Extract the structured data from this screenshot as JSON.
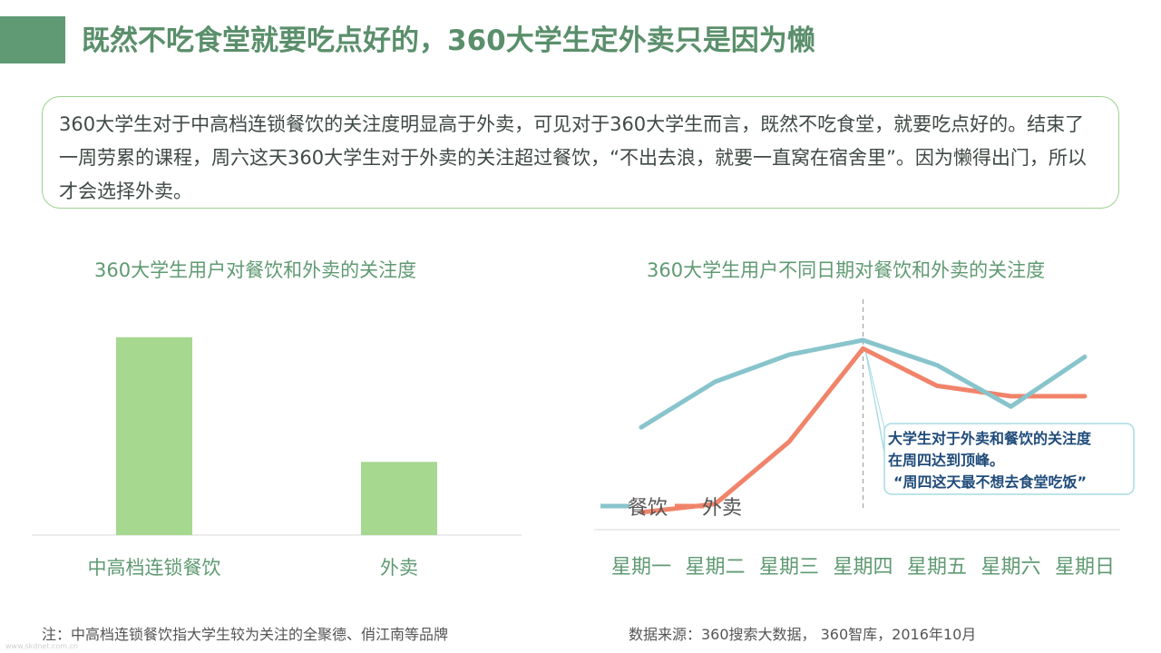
{
  "title": "既然不吃食堂就要吃点好的，360大学生定外卖只是因为懒",
  "summary": "360大学生对于中高档连锁餐饮的关注度明显高于外卖，可见对于360大学生而言，既然不吃食堂，就要吃点好的。结束了一周劳累的课程，周六这天360大学生对于外卖的关注超过餐饮，“不出去浪，就要一直窝在宿舍里”。因为懒得出门，所以才会选择外卖。",
  "colors": {
    "accent": "#5f9a75",
    "bar": "#a6d88f",
    "catering_line": "#88c4cc",
    "takeout_line": "#f0846a",
    "callout_border": "#a7dbe2"
  },
  "chart_data": [
    {
      "type": "bar",
      "title": "360大学生用户对餐饮和外卖的关注度",
      "categories": [
        "中高档连锁餐饮",
        "外卖"
      ],
      "values": [
        100,
        37
      ],
      "ylim": [
        0,
        110
      ],
      "grid": false,
      "legend": "none"
    },
    {
      "type": "line",
      "title": "360大学生用户不同日期对餐饮和外卖的关注度",
      "categories": [
        "星期一",
        "星期二",
        "星期三",
        "星期四",
        "星期五",
        "星期六",
        "星期日"
      ],
      "series": [
        {
          "name": "餐饮",
          "values": [
            52,
            74,
            87,
            94,
            82,
            62,
            86
          ],
          "color": "#88c4cc"
        },
        {
          "name": "外卖",
          "values": [
            11,
            15,
            45,
            90,
            72,
            67,
            67
          ],
          "color": "#f0846a"
        }
      ],
      "ylim": [
        0,
        105
      ],
      "grid": false,
      "legend": "bottom-left",
      "highlight": "星期四",
      "annotation": {
        "lines": [
          "大学生对于外卖和餐饮的关注度",
          "在周四达到顶峰。",
          "“周四这天最不想去食堂吃饭”"
        ]
      }
    }
  ],
  "footnotes": {
    "left": "注：中高档连锁餐饮指大学生较为关注的全聚德、俏江南等品牌",
    "right": "数据来源：360搜索大数据， 360智库，2016年10月"
  },
  "watermark": "www.skdnet.com.cn"
}
